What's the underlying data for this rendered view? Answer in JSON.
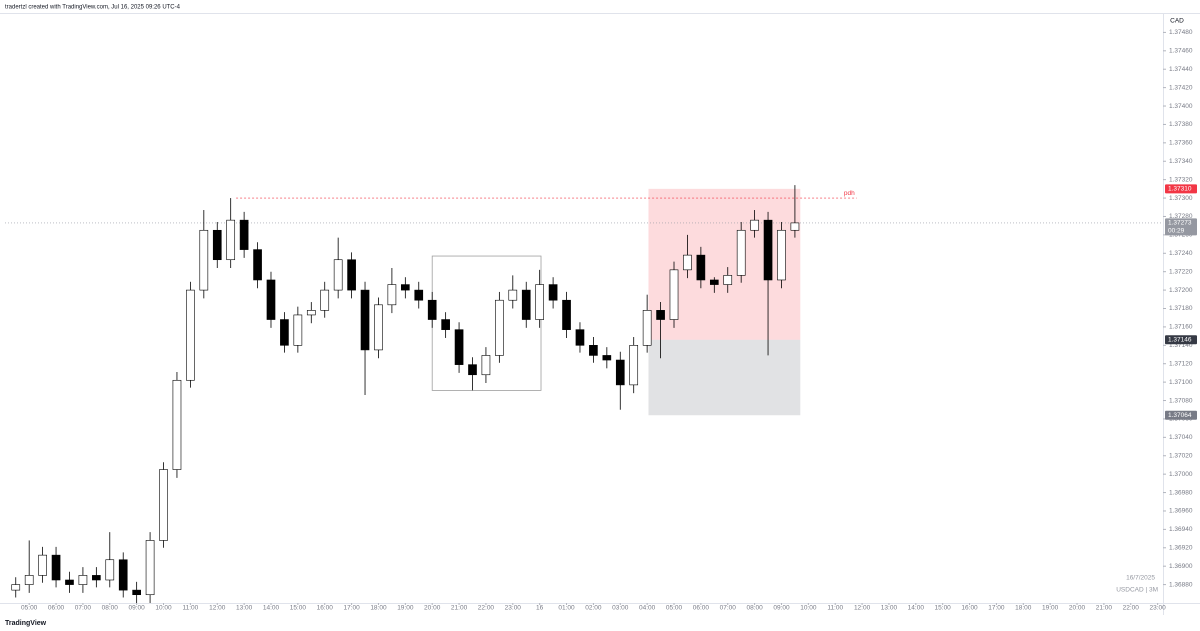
{
  "header": {
    "credit": "tradertzl created with TradingView.com, Jul 16, 2025 09:26 UTC-4",
    "currency": "CAD"
  },
  "footer": {
    "date": "16/7/2025",
    "symbol": "USDCAD | 3M",
    "logo": "TradingView"
  },
  "chart_data": {
    "type": "candlestick",
    "x": [
      -0.5,
      0,
      0.5,
      1,
      1.5,
      2,
      2.5,
      3,
      3.5,
      4,
      4.5,
      5,
      5.5,
      6,
      6.5,
      7,
      7.5,
      8,
      8.5,
      9,
      9.5,
      10,
      10.5,
      11,
      11.5,
      12,
      12.5,
      13,
      13.5,
      14,
      14.5,
      15,
      15.5,
      16,
      16.5,
      17,
      17.5,
      18,
      18.5,
      19,
      19.5,
      20,
      20.5,
      21,
      21.5,
      22,
      22.5,
      23,
      23.5,
      24,
      24.5,
      25,
      25.5,
      26,
      26.5,
      27,
      27.5,
      28,
      28.5
    ],
    "open": [
      1.36874,
      1.3688,
      1.3689,
      1.36912,
      1.36885,
      1.3688,
      1.3689,
      1.36885,
      1.36907,
      1.36874,
      1.36869,
      1.36928,
      1.37005,
      1.37102,
      1.372,
      1.37265,
      1.37233,
      1.37276,
      1.37244,
      1.37211,
      1.37168,
      1.3714,
      1.37173,
      1.37178,
      1.372,
      1.37233,
      1.372,
      1.37135,
      1.37184,
      1.37206,
      1.372,
      1.37189,
      1.37168,
      1.37157,
      1.37119,
      1.37108,
      1.37129,
      1.37189,
      1.372,
      1.37168,
      1.37206,
      1.37189,
      1.37157,
      1.3714,
      1.37129,
      1.37124,
      1.37097,
      1.3714,
      1.37178,
      1.37168,
      1.37222,
      1.37238,
      1.37211,
      1.37206,
      1.37216,
      1.37265,
      1.37276,
      1.37211,
      1.37265
    ],
    "high": [
      1.36888,
      1.36928,
      1.36921,
      1.36921,
      1.36894,
      1.36899,
      1.36899,
      1.36937,
      1.36915,
      1.36883,
      1.36937,
      1.37013,
      1.37111,
      1.37209,
      1.37287,
      1.37274,
      1.373,
      1.37285,
      1.37252,
      1.3722,
      1.37176,
      1.37182,
      1.37187,
      1.37209,
      1.37257,
      1.37241,
      1.37209,
      1.37192,
      1.37224,
      1.37214,
      1.37209,
      1.37198,
      1.37176,
      1.37165,
      1.37127,
      1.37138,
      1.37198,
      1.37216,
      1.37209,
      1.37222,
      1.37214,
      1.37198,
      1.37165,
      1.37149,
      1.37138,
      1.37133,
      1.37149,
      1.37195,
      1.37187,
      1.37231,
      1.3726,
      1.37247,
      1.37214,
      1.37225,
      1.37274,
      1.37287,
      1.37285,
      1.37274,
      1.37314
    ],
    "low": [
      1.36866,
      1.36871,
      1.36882,
      1.36877,
      1.36871,
      1.36871,
      1.36877,
      1.36877,
      1.36866,
      1.3686,
      1.3686,
      1.3692,
      1.36996,
      1.37094,
      1.37191,
      1.37224,
      1.37224,
      1.37235,
      1.37202,
      1.37159,
      1.37132,
      1.37132,
      1.37164,
      1.3717,
      1.37191,
      1.37191,
      1.37086,
      1.37126,
      1.37175,
      1.37191,
      1.3718,
      1.37159,
      1.37148,
      1.3711,
      1.37091,
      1.37099,
      1.37121,
      1.3718,
      1.37159,
      1.37159,
      1.3718,
      1.37148,
      1.37132,
      1.37121,
      1.37115,
      1.3707,
      1.37088,
      1.37132,
      1.37126,
      1.37159,
      1.37213,
      1.37202,
      1.37197,
      1.37197,
      1.37208,
      1.37257,
      1.37129,
      1.37202,
      1.37257
    ],
    "close": [
      1.3688,
      1.3689,
      1.36912,
      1.36885,
      1.3688,
      1.3689,
      1.36885,
      1.36907,
      1.36874,
      1.36869,
      1.36928,
      1.37005,
      1.37102,
      1.372,
      1.37265,
      1.37233,
      1.37276,
      1.37244,
      1.37211,
      1.37168,
      1.3714,
      1.37173,
      1.37178,
      1.372,
      1.37233,
      1.372,
      1.37135,
      1.37184,
      1.37206,
      1.372,
      1.37189,
      1.37168,
      1.37157,
      1.37119,
      1.37108,
      1.37129,
      1.37189,
      1.372,
      1.37168,
      1.37206,
      1.37189,
      1.37157,
      1.3714,
      1.37129,
      1.37124,
      1.37097,
      1.3714,
      1.37178,
      1.37168,
      1.37222,
      1.37238,
      1.37211,
      1.37206,
      1.37216,
      1.37265,
      1.37276,
      1.37211,
      1.37265,
      1.37273
    ],
    "up_color": "#ffffff",
    "down_color": "#000000",
    "wick_color": "#000000",
    "xlim": [
      -0.9,
      42.2
    ],
    "ylim": [
      1.3686,
      1.375
    ],
    "xticks": [
      {
        "value": 0,
        "label": "05:00"
      },
      {
        "value": 1,
        "label": "06:00"
      },
      {
        "value": 2,
        "label": "07:00"
      },
      {
        "value": 3,
        "label": "08:00"
      },
      {
        "value": 4,
        "label": "09:00"
      },
      {
        "value": 5,
        "label": "10:00"
      },
      {
        "value": 6,
        "label": "11:00"
      },
      {
        "value": 7,
        "label": "12:00"
      },
      {
        "value": 8,
        "label": "13:00"
      },
      {
        "value": 9,
        "label": "14:00"
      },
      {
        "value": 10,
        "label": "15:00"
      },
      {
        "value": 11,
        "label": "16:00"
      },
      {
        "value": 12,
        "label": "17:00"
      },
      {
        "value": 13,
        "label": "18:00"
      },
      {
        "value": 14,
        "label": "19:00"
      },
      {
        "value": 15,
        "label": "20:00"
      },
      {
        "value": 16,
        "label": "21:00"
      },
      {
        "value": 17,
        "label": "22:00"
      },
      {
        "value": 18,
        "label": "23:00"
      },
      {
        "value": 19,
        "label": "16"
      },
      {
        "value": 20,
        "label": "01:00"
      },
      {
        "value": 21,
        "label": "02:00"
      },
      {
        "value": 22,
        "label": "03:00"
      },
      {
        "value": 23,
        "label": "04:00"
      },
      {
        "value": 24,
        "label": "05:00"
      },
      {
        "value": 25,
        "label": "06:00"
      },
      {
        "value": 26,
        "label": "07:00"
      },
      {
        "value": 27,
        "label": "08:00"
      },
      {
        "value": 28,
        "label": "09:00"
      },
      {
        "value": 29,
        "label": "10:00"
      },
      {
        "value": 30,
        "label": "11:00"
      },
      {
        "value": 31,
        "label": "12:00"
      },
      {
        "value": 32,
        "label": "13:00"
      },
      {
        "value": 33,
        "label": "14:00"
      },
      {
        "value": 34,
        "label": "15:00"
      },
      {
        "value": 35,
        "label": "16:00"
      },
      {
        "value": 36,
        "label": "17:00"
      },
      {
        "value": 37,
        "label": "18:00"
      },
      {
        "value": 38,
        "label": "19:00"
      },
      {
        "value": 39,
        "label": "20:00"
      },
      {
        "value": 40,
        "label": "21:00"
      },
      {
        "value": 41,
        "label": "22:00"
      },
      {
        "value": 42,
        "label": "23:00"
      }
    ],
    "yticks": [
      {
        "value": 1.3748,
        "label": "1.37480"
      },
      {
        "value": 1.3746,
        "label": "1.37460"
      },
      {
        "value": 1.3744,
        "label": "1.37440"
      },
      {
        "value": 1.3742,
        "label": "1.37420"
      },
      {
        "value": 1.374,
        "label": "1.37400"
      },
      {
        "value": 1.3738,
        "label": "1.37380"
      },
      {
        "value": 1.3736,
        "label": "1.37360"
      },
      {
        "value": 1.3734,
        "label": "1.37340"
      },
      {
        "value": 1.3732,
        "label": "1.37320"
      },
      {
        "value": 1.373,
        "label": "1.37300"
      },
      {
        "value": 1.3728,
        "label": "1.37280"
      },
      {
        "value": 1.3726,
        "label": "1.37260"
      },
      {
        "value": 1.3724,
        "label": "1.37240"
      },
      {
        "value": 1.3722,
        "label": "1.37220"
      },
      {
        "value": 1.372,
        "label": "1.37200"
      },
      {
        "value": 1.3718,
        "label": "1.37180"
      },
      {
        "value": 1.3716,
        "label": "1.37160"
      },
      {
        "value": 1.3714,
        "label": "1.37140"
      },
      {
        "value": 1.3712,
        "label": "1.37120"
      },
      {
        "value": 1.371,
        "label": "1.37100"
      },
      {
        "value": 1.3708,
        "label": "1.37080"
      },
      {
        "value": 1.3706,
        "label": "1.37060"
      },
      {
        "value": 1.3704,
        "label": "1.37040"
      },
      {
        "value": 1.3702,
        "label": "1.37020"
      },
      {
        "value": 1.37,
        "label": "1.37000"
      },
      {
        "value": 1.3698,
        "label": "1.36980"
      },
      {
        "value": 1.3696,
        "label": "1.36960"
      },
      {
        "value": 1.3694,
        "label": "1.36940"
      },
      {
        "value": 1.3692,
        "label": "1.36920"
      },
      {
        "value": 1.369,
        "label": "1.36900"
      },
      {
        "value": 1.3688,
        "label": "1.36880"
      }
    ],
    "rectangle": {
      "x": [
        15,
        19.05
      ],
      "y": [
        1.37237,
        1.37091
      ],
      "color": "#9e9e9e"
    },
    "position": {
      "x": [
        23.05,
        28.7
      ],
      "target": {
        "value": 1.3731,
        "label": "1.37310",
        "color": "#f23645"
      },
      "entry": {
        "value": 1.37146,
        "label": "1.37146",
        "color": "#363a45"
      },
      "stop": {
        "value": 1.37064,
        "label": "1.37064",
        "color": "#787b86"
      }
    },
    "pdh": {
      "label": "pdh",
      "value": 1.373,
      "x": [
        7.7,
        30.8
      ],
      "color": "#f23645"
    },
    "last_price": {
      "value": 1.37273,
      "label": "1.37273",
      "countdown": "00:29",
      "color": "#9598a1"
    }
  }
}
